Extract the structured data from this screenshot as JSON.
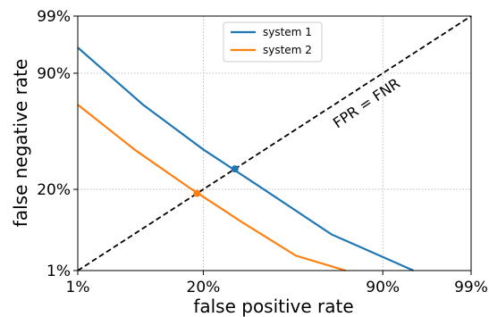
{
  "chart_data": {
    "type": "line",
    "title": "",
    "xlabel": "false positive rate",
    "ylabel": "false negative rate",
    "scale": "normal-deviate (probit)",
    "xlim": [
      "1%",
      "99%"
    ],
    "ylim": [
      "1%",
      "99%"
    ],
    "xticks": [
      "1%",
      "20%",
      "90%",
      "99%"
    ],
    "yticks": [
      "1%",
      "20%",
      "90%",
      "99%"
    ],
    "grid": true,
    "legend_position": "top-center",
    "annotation": "FPR = FNR",
    "series": [
      {
        "name": "system 1",
        "color": "#1f77b4",
        "x": [
          0.01,
          0.06,
          0.2,
          0.45,
          0.75,
          0.95
        ],
        "y": [
          0.96,
          0.76,
          0.455,
          0.2,
          0.048,
          0.01
        ],
        "eer": 0.32
      },
      {
        "name": "system 2",
        "color": "#ff7f0e",
        "x": [
          0.01,
          0.05,
          0.16,
          0.35,
          0.6,
          0.8
        ],
        "y": [
          0.76,
          0.45,
          0.205,
          0.075,
          0.02,
          0.01
        ],
        "eer": 0.18
      }
    ],
    "diagonal": {
      "style": "dashed",
      "color": "#000000",
      "label": "FPR = FNR"
    }
  }
}
